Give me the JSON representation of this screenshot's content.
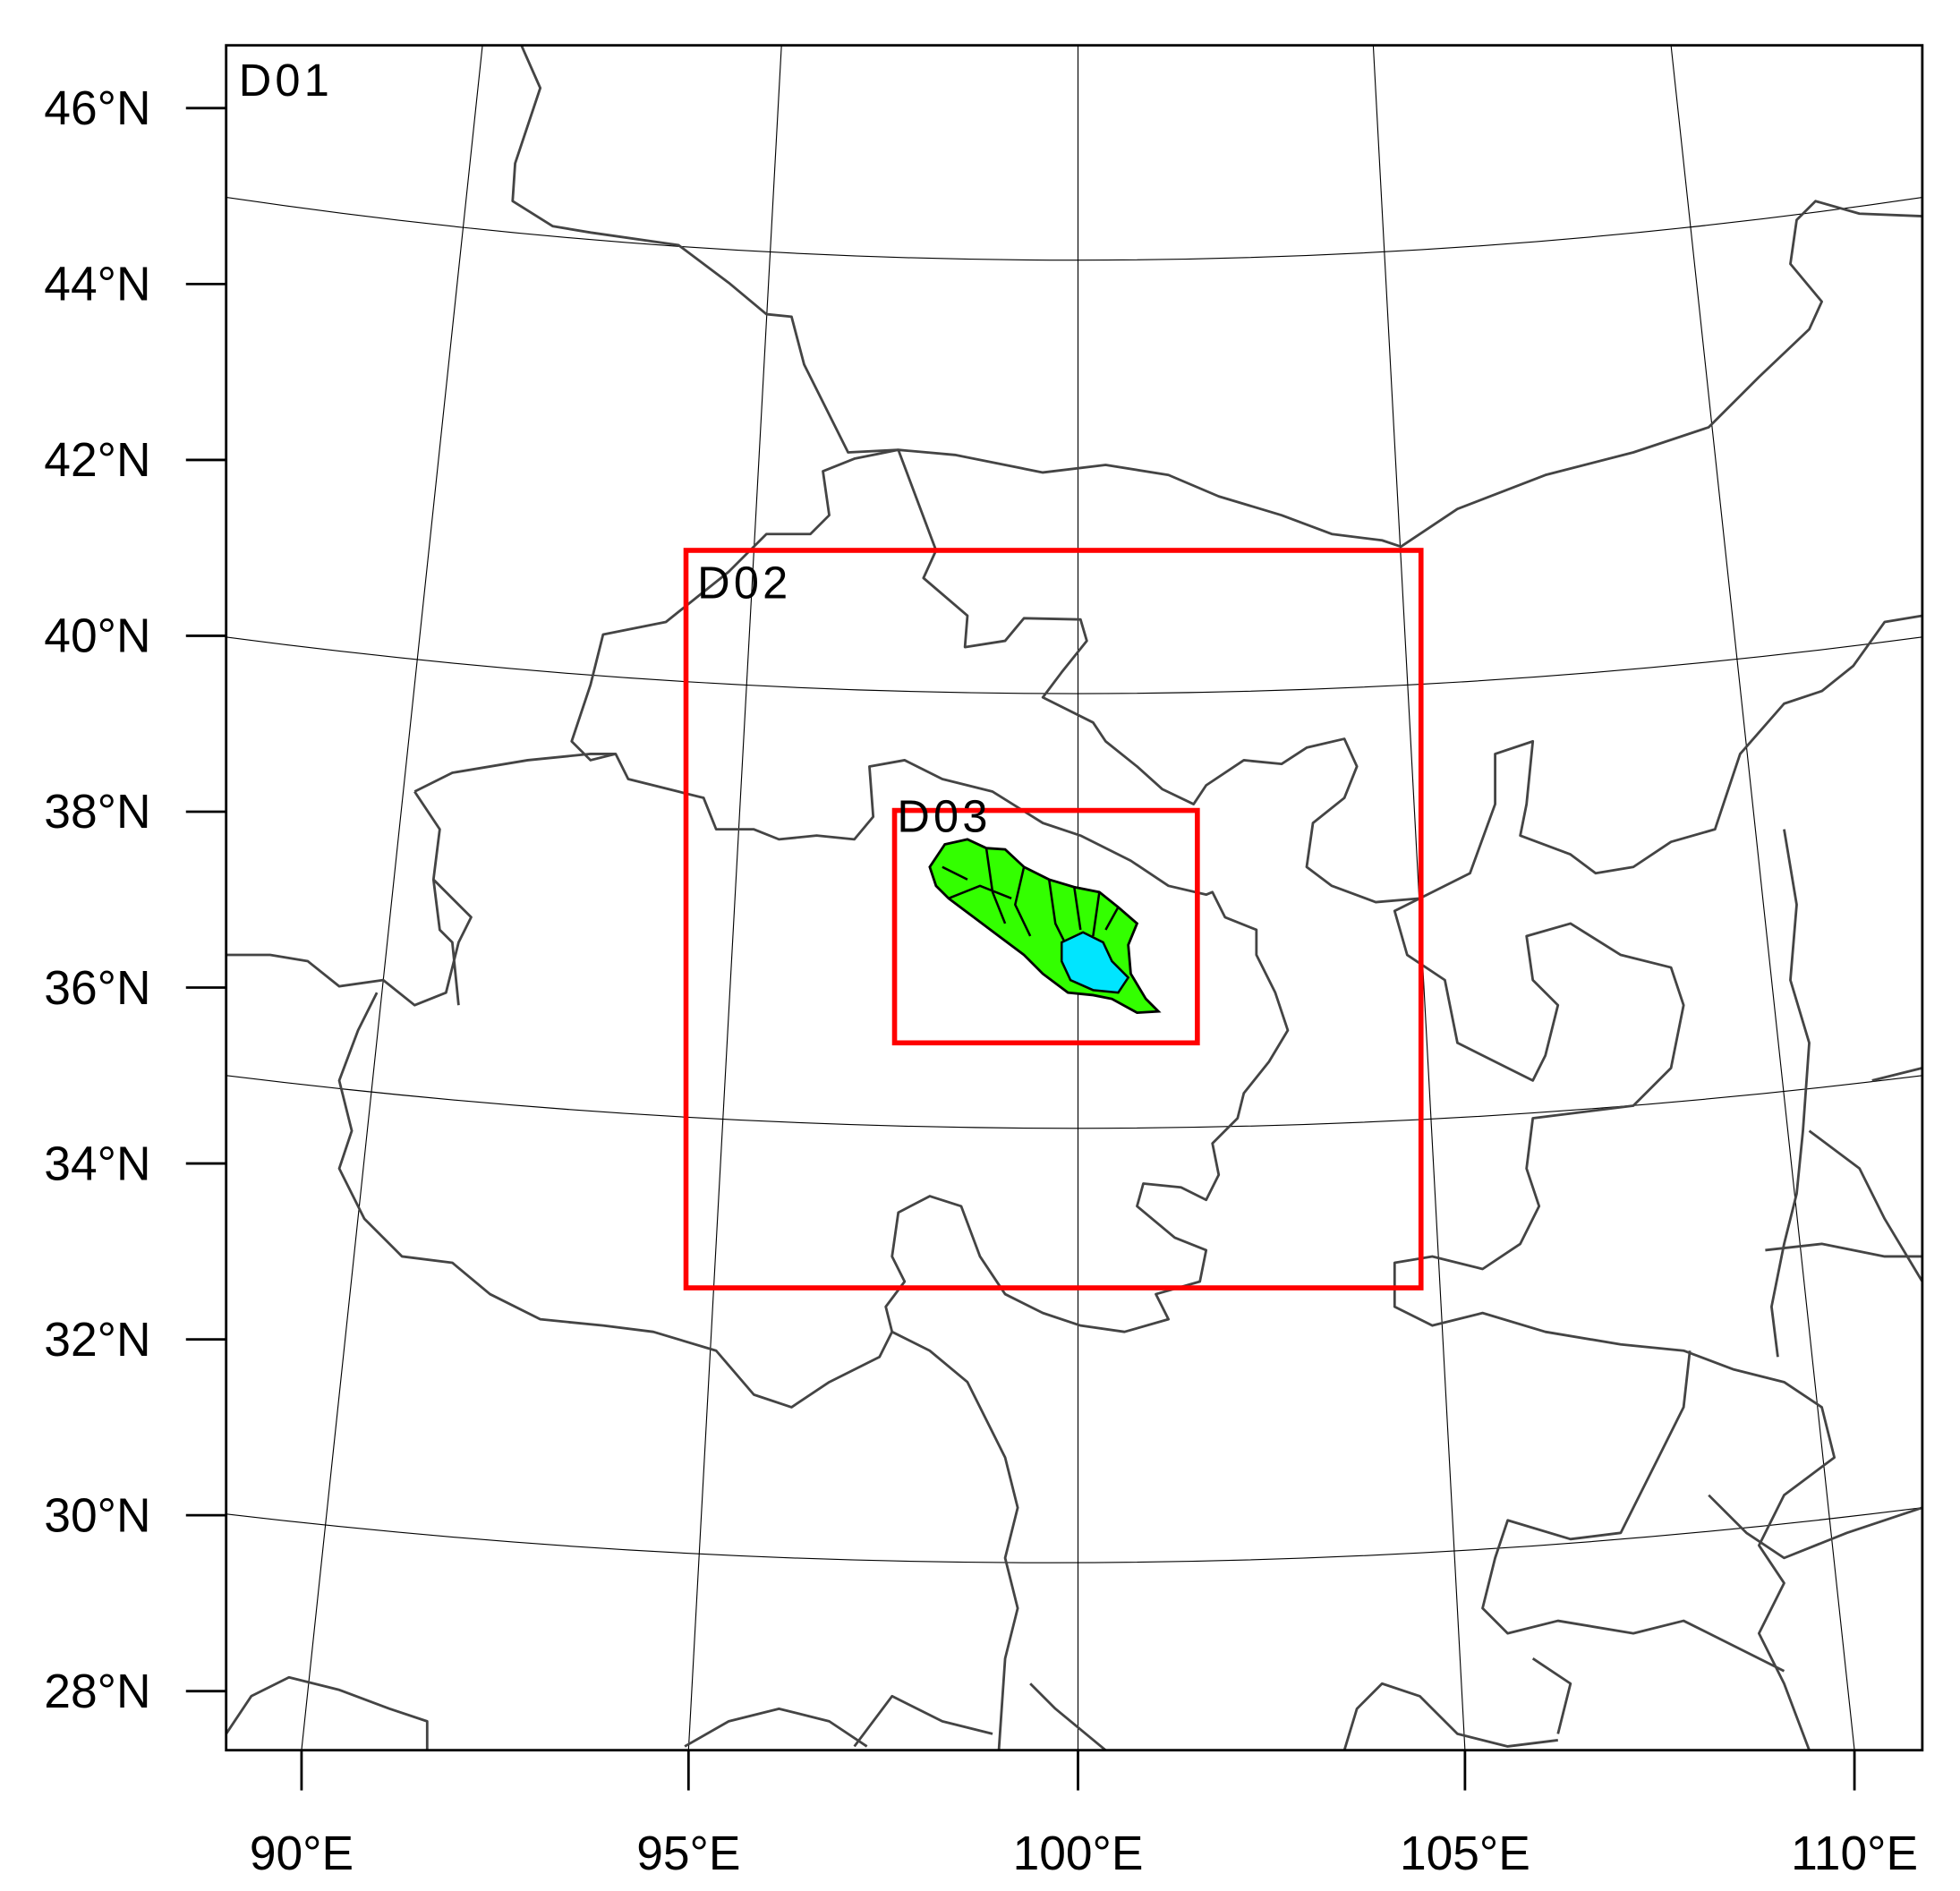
{
  "map": {
    "domains": [
      "D01",
      "D02",
      "D03"
    ],
    "lat_labels": [
      "46°N",
      "44°N",
      "42°N",
      "40°N",
      "38°N",
      "36°N",
      "34°N",
      "32°N",
      "30°N",
      "28°N"
    ],
    "lon_labels": [
      "90°E",
      "95°E",
      "100°E",
      "105°E",
      "110°E"
    ]
  }
}
